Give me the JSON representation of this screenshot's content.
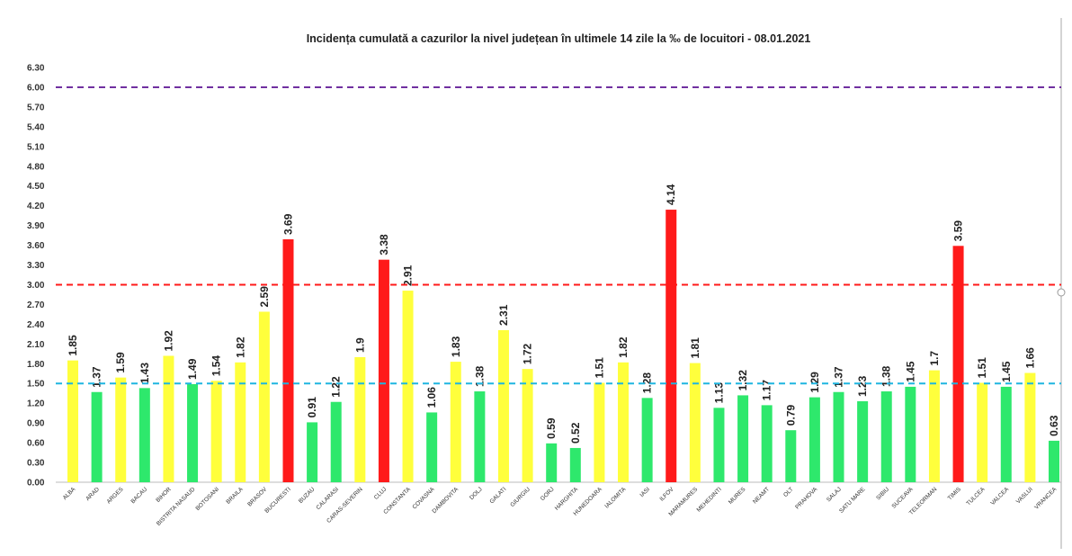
{
  "chart_data": {
    "type": "bar",
    "title": "Incidența cumulată a cazurilor la nivel județean în ultimele 14 zile la ‰ de locuitori - 08.01.2021",
    "xlabel": "",
    "ylabel": "",
    "ylim": [
      0,
      6.3
    ],
    "yticks": [
      "0.00",
      "0.30",
      "0.60",
      "0.90",
      "1.20",
      "1.50",
      "1.80",
      "2.10",
      "2.40",
      "2.70",
      "3.00",
      "3.30",
      "3.60",
      "3.90",
      "4.20",
      "4.50",
      "4.80",
      "5.10",
      "5.40",
      "5.70",
      "6.00",
      "6.30"
    ],
    "grid": false,
    "categories": [
      "ALBA",
      "ARAD",
      "ARGES",
      "BACAU",
      "BIHOR",
      "BISTRITA NASAUD",
      "BOTOSANI",
      "BRAILA",
      "BRASOV",
      "BUCURESTI",
      "BUZAU",
      "CALARASI",
      "CARAS-SEVERIN",
      "CLUJ",
      "CONSTANTA",
      "COVASNA",
      "DAMBOVITA",
      "DOLJ",
      "GALATI",
      "GIURGIU",
      "GORJ",
      "HARGHITA",
      "HUNEDOARA",
      "IALOMITA",
      "IASI",
      "ILFOV",
      "MARAMURES",
      "MEHEDINTI",
      "MURES",
      "NEAMT",
      "OLT",
      "PRAHOVA",
      "SALAJ",
      "SATU MARE",
      "SIBIU",
      "SUCEAVA",
      "TELEORMAN",
      "TIMIS",
      "TULCEA",
      "VALCEA",
      "VASLUI",
      "VRANCEA"
    ],
    "values": [
      1.85,
      1.37,
      1.59,
      1.43,
      1.92,
      1.49,
      1.54,
      1.82,
      2.59,
      3.69,
      0.91,
      1.22,
      1.9,
      3.38,
      2.91,
      1.06,
      1.83,
      1.38,
      2.31,
      1.72,
      0.59,
      0.52,
      1.51,
      1.82,
      1.28,
      4.14,
      1.81,
      1.13,
      1.32,
      1.17,
      0.79,
      1.29,
      1.37,
      1.23,
      1.38,
      1.45,
      1.7,
      3.59,
      1.51,
      1.45,
      1.66,
      0.63
    ],
    "value_labels": [
      "1.85",
      "1.37",
      "1.59",
      "1.43",
      "1.92",
      "1.49",
      "1.54",
      "1.82",
      "2.59",
      "3.69",
      "0.91",
      "1.22",
      "1.9",
      "3.38",
      "2.91",
      "1.06",
      "1.83",
      "1.38",
      "2.31",
      "1.72",
      "0.59",
      "0.52",
      "1.51",
      "1.82",
      "1.28",
      "4.14",
      "1.81",
      "1.13",
      "1.32",
      "1.17",
      "0.79",
      "1.29",
      "1.37",
      "1.23",
      "1.38",
      "1.45",
      "1.7",
      "3.59",
      "1.51",
      "1.45",
      "1.66",
      "0.63"
    ],
    "bar_colors": {
      "green": "#2ee86c",
      "yellow": "#ffff3c",
      "red": "#ff1a1a"
    },
    "color_thresholds": {
      "yellow_from": 1.5,
      "red_from": 3.0
    },
    "reference_lines": [
      {
        "value": 6.0,
        "color": "#7030a0"
      },
      {
        "value": 3.0,
        "color": "#ff1a1a"
      },
      {
        "value": 1.5,
        "color": "#1fb5e0"
      }
    ]
  }
}
